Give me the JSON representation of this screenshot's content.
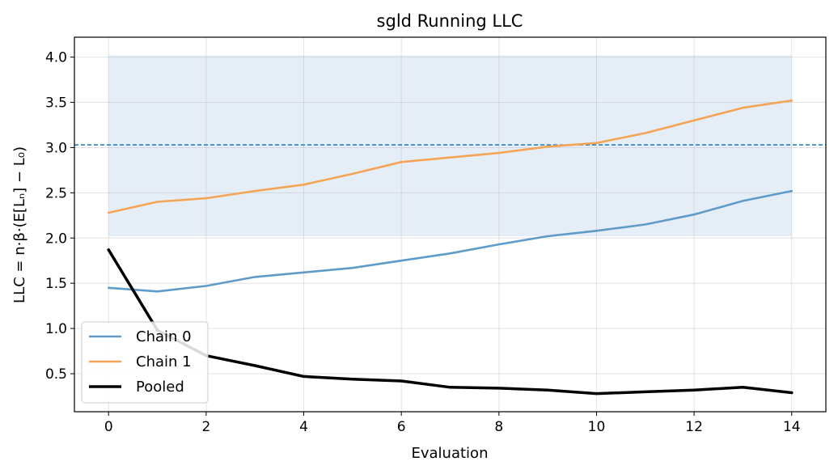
{
  "chart_data": {
    "type": "line",
    "title": "sgld Running LLC",
    "xlabel": "Evaluation",
    "ylabel": "LLC = n·β·(E[Lₙ] − L₀)",
    "xlim": [
      -0.7,
      14.7
    ],
    "ylim": [
      0.08,
      4.22
    ],
    "xticks": [
      0,
      2,
      4,
      6,
      8,
      10,
      12,
      14
    ],
    "yticks": [
      0.5,
      1.0,
      1.5,
      2.0,
      2.5,
      3.0,
      3.5,
      4.0
    ],
    "xtick_labels": [
      "0",
      "2",
      "4",
      "6",
      "8",
      "10",
      "12",
      "14"
    ],
    "ytick_labels": [
      "0.5",
      "1.0",
      "1.5",
      "2.0",
      "2.5",
      "3.0",
      "3.5",
      "4.0"
    ],
    "grid": true,
    "legend_position": "lower-left",
    "x": [
      0,
      1,
      2,
      3,
      4,
      5,
      6,
      7,
      8,
      9,
      10,
      11,
      12,
      13,
      14
    ],
    "series": [
      {
        "name": "Chain 0",
        "color": "#5f9bc8",
        "values": [
          1.45,
          1.41,
          1.47,
          1.57,
          1.62,
          1.67,
          1.75,
          1.83,
          1.93,
          2.02,
          2.08,
          2.15,
          2.26,
          2.41,
          2.52
        ]
      },
      {
        "name": "Chain 1",
        "color": "#f4a454",
        "values": [
          2.28,
          2.4,
          2.44,
          2.52,
          2.59,
          2.71,
          2.84,
          2.89,
          2.94,
          3.01,
          3.05,
          3.16,
          3.3,
          3.44,
          3.52
        ]
      },
      {
        "name": "Pooled",
        "color": "#000000",
        "values": [
          1.87,
          0.98,
          0.7,
          0.59,
          0.47,
          0.44,
          0.42,
          0.35,
          0.34,
          0.32,
          0.28,
          0.3,
          0.32,
          0.35,
          0.29
        ]
      }
    ],
    "reference_line": {
      "y": 3.03,
      "style": "dashed",
      "color": "#1f77b4"
    },
    "shaded_band": {
      "x_range": [
        0,
        14
      ],
      "y_range": [
        2.02,
        4.02
      ],
      "color": "#dce8f4"
    }
  }
}
